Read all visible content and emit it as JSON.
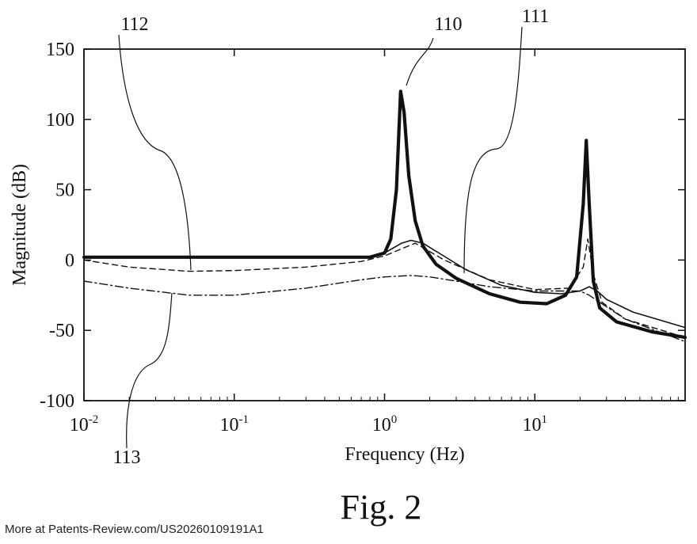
{
  "figure": {
    "caption": "Fig. 2",
    "source_note": "More at Patents-Review.com/US20260109191A1"
  },
  "callouts": [
    {
      "id": "110",
      "label": "110",
      "series_index": 0
    },
    {
      "id": "111",
      "label": "111",
      "series_index": 1
    },
    {
      "id": "112",
      "label": "112",
      "series_index": 2
    },
    {
      "id": "113",
      "label": "113",
      "series_index": 3
    }
  ],
  "chart_data": {
    "type": "line",
    "title": "",
    "xlabel": "Frequency (Hz)",
    "ylabel": "Magnitude (dB)",
    "xscale": "log",
    "xlim": [
      0.01,
      100
    ],
    "ylim": [
      -100,
      150
    ],
    "x_ticks": [
      {
        "value": 0.01,
        "base": "10",
        "exp": "-2"
      },
      {
        "value": 0.1,
        "base": "10",
        "exp": "-1"
      },
      {
        "value": 1,
        "base": "10",
        "exp": "0"
      },
      {
        "value": 10,
        "base": "10",
        "exp": "1"
      }
    ],
    "y_ticks": [
      150,
      100,
      50,
      0,
      -50,
      -100
    ],
    "grid": false,
    "legend": "none",
    "series": [
      {
        "style": "thick-solid",
        "x": [
          0.01,
          0.1,
          0.5,
          0.8,
          1.0,
          1.1,
          1.2,
          1.28,
          1.35,
          1.45,
          1.6,
          1.8,
          2.2,
          3,
          5,
          8,
          12,
          16,
          19,
          21,
          22,
          23,
          24.5,
          27,
          35,
          60,
          100
        ],
        "y": [
          2,
          2,
          2,
          2,
          5,
          15,
          50,
          120,
          105,
          60,
          28,
          10,
          -3,
          -13,
          -24,
          -30,
          -31,
          -25,
          -12,
          40,
          85,
          40,
          -15,
          -34,
          -44,
          -51,
          -55
        ]
      },
      {
        "style": "thin-solid",
        "x": [
          0.01,
          0.1,
          0.5,
          0.8,
          1.0,
          1.3,
          1.5,
          1.8,
          2.3,
          3.5,
          6,
          10,
          15,
          20,
          23,
          26,
          30,
          45,
          100
        ],
        "y": [
          2,
          2,
          2,
          2,
          5,
          12,
          14,
          12,
          5,
          -7,
          -18,
          -23,
          -24,
          -22,
          -19,
          -22,
          -28,
          -37,
          -48
        ]
      },
      {
        "style": "dashed",
        "x": [
          0.01,
          0.02,
          0.05,
          0.1,
          0.3,
          0.7,
          1.0,
          1.6,
          2.5,
          5,
          10,
          17,
          21,
          22.5,
          24.5,
          28,
          40,
          100
        ],
        "y": [
          0,
          -5,
          -8,
          -7.5,
          -5,
          -1,
          3,
          12,
          0,
          -14,
          -21,
          -20,
          -5,
          15,
          -10,
          -30,
          -42,
          -55
        ]
      },
      {
        "style": "dash-dot",
        "x": [
          0.01,
          0.02,
          0.05,
          0.1,
          0.3,
          0.7,
          1.0,
          1.5,
          2,
          3,
          5,
          10,
          20,
          23,
          27,
          40,
          100
        ],
        "y": [
          -15,
          -20,
          -25,
          -25,
          -20,
          -14,
          -12,
          -11,
          -12,
          -15,
          -19,
          -22,
          -22,
          -25,
          -30,
          -42,
          -58
        ]
      }
    ]
  }
}
